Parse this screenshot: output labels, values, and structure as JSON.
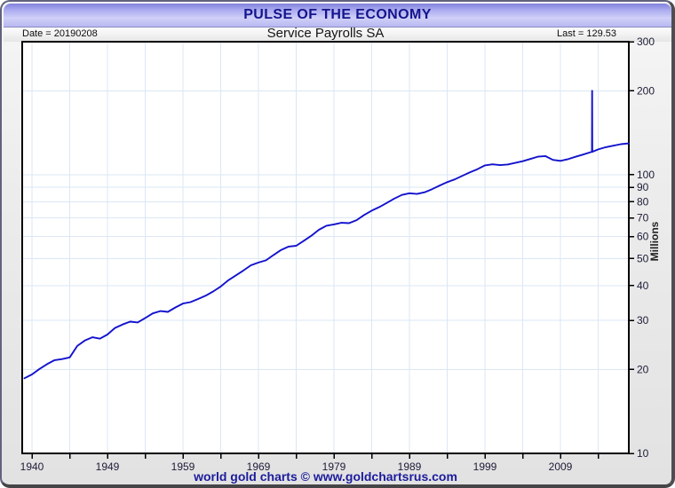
{
  "window": {
    "title": "PULSE OF THE ECONOMY"
  },
  "header": {
    "date_label": "Date = 20190208",
    "chart_title": "Service Payrolls SA",
    "last_label": "Last = 129.53"
  },
  "footer": {
    "credit": "world gold charts © www.goldchartsrus.com"
  },
  "colors": {
    "line": "#1212cd",
    "grid": "#dbe7f5",
    "axis": "#000000",
    "tick_label": "#1c1c38",
    "ylabel_text": "#222222"
  },
  "chart_data": {
    "type": "line",
    "title": "Service Payrolls SA",
    "ylabel": "Millions",
    "y_scale": "log",
    "ylim": [
      10,
      300
    ],
    "xlim_years": [
      1938.7,
      2019.06
    ],
    "grid": true,
    "legend": "none",
    "y_ticks": [
      10,
      20,
      30,
      40,
      50,
      60,
      70,
      80,
      90,
      100,
      200,
      300
    ],
    "y_gridline_values": [
      20,
      30,
      40,
      50,
      60,
      70,
      80,
      90,
      100,
      200
    ],
    "x_tick_start_year": 1940,
    "x_tick_interval_years": 5,
    "x_tick_count": 16,
    "x_label_every": 2,
    "x_tick_labels": [
      "1940",
      "1949",
      "1959",
      "1969",
      "1979",
      "1989",
      "1999",
      "2009"
    ],
    "last_value": 129.53,
    "date_stamp": "20190208",
    "spike": {
      "year": 2014.2,
      "peak": 200
    },
    "series": [
      {
        "name": "Service Payrolls SA",
        "points": [
          [
            1939,
            18.6
          ],
          [
            1940,
            19.2
          ],
          [
            1941,
            20.1
          ],
          [
            1942,
            20.9
          ],
          [
            1943,
            21.6
          ],
          [
            1944,
            21.8
          ],
          [
            1945,
            22.1
          ],
          [
            1946,
            24.3
          ],
          [
            1947,
            25.4
          ],
          [
            1948,
            26.1
          ],
          [
            1949,
            25.8
          ],
          [
            1950,
            26.7
          ],
          [
            1951,
            28.2
          ],
          [
            1952,
            29.0
          ],
          [
            1953,
            29.7
          ],
          [
            1954,
            29.5
          ],
          [
            1955,
            30.6
          ],
          [
            1956,
            31.8
          ],
          [
            1957,
            32.4
          ],
          [
            1958,
            32.2
          ],
          [
            1959,
            33.4
          ],
          [
            1960,
            34.5
          ],
          [
            1961,
            34.9
          ],
          [
            1962,
            35.8
          ],
          [
            1963,
            36.8
          ],
          [
            1964,
            38.1
          ],
          [
            1965,
            39.7
          ],
          [
            1966,
            41.8
          ],
          [
            1967,
            43.5
          ],
          [
            1968,
            45.3
          ],
          [
            1969,
            47.3
          ],
          [
            1970,
            48.4
          ],
          [
            1971,
            49.3
          ],
          [
            1972,
            51.5
          ],
          [
            1973,
            53.7
          ],
          [
            1974,
            55.2
          ],
          [
            1975,
            55.6
          ],
          [
            1976,
            57.9
          ],
          [
            1977,
            60.4
          ],
          [
            1978,
            63.4
          ],
          [
            1979,
            65.6
          ],
          [
            1980,
            66.3
          ],
          [
            1981,
            67.2
          ],
          [
            1982,
            67.0
          ],
          [
            1983,
            68.7
          ],
          [
            1984,
            71.7
          ],
          [
            1985,
            74.3
          ],
          [
            1986,
            76.5
          ],
          [
            1987,
            79.2
          ],
          [
            1988,
            82.1
          ],
          [
            1989,
            84.6
          ],
          [
            1990,
            85.8
          ],
          [
            1991,
            85.3
          ],
          [
            1992,
            86.5
          ],
          [
            1993,
            88.7
          ],
          [
            1994,
            91.4
          ],
          [
            1995,
            94.0
          ],
          [
            1996,
            96.2
          ],
          [
            1997,
            99.0
          ],
          [
            1998,
            101.9
          ],
          [
            1999,
            104.6
          ],
          [
            2000,
            108.0
          ],
          [
            2001,
            108.9
          ],
          [
            2002,
            108.2
          ],
          [
            2003,
            108.8
          ],
          [
            2004,
            110.2
          ],
          [
            2005,
            111.8
          ],
          [
            2006,
            113.8
          ],
          [
            2007,
            116.0
          ],
          [
            2008,
            116.6
          ],
          [
            2009,
            113.0
          ],
          [
            2010,
            112.1
          ],
          [
            2011,
            113.7
          ],
          [
            2012,
            115.9
          ],
          [
            2013,
            118.1
          ],
          [
            2014,
            120.4
          ],
          [
            2014.18,
            120.7
          ],
          [
            2014.2,
            200
          ],
          [
            2014.22,
            120.8
          ],
          [
            2015,
            123.2
          ],
          [
            2016,
            125.5
          ],
          [
            2017,
            127.1
          ],
          [
            2018,
            128.7
          ],
          [
            2019.05,
            129.53
          ]
        ]
      }
    ]
  }
}
